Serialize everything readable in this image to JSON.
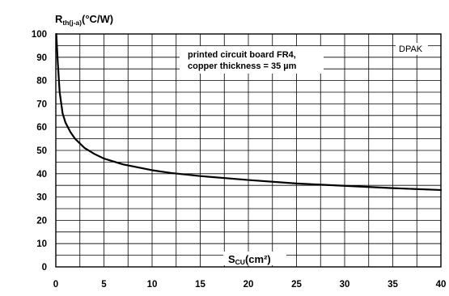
{
  "chart_data": {
    "type": "line",
    "ylabel_main": "R",
    "ylabel_sub": "th(j-a)",
    "ylabel_unit": "(°C/W)",
    "xlabel_main": "S",
    "xlabel_sub": "CU",
    "xlabel_unit": "(cm²)",
    "annotation_line1": "printed circuit board FR4,",
    "annotation_line2": "copper thickness = 35 µm",
    "package_label": "DPAK",
    "xlim": [
      0,
      40
    ],
    "ylim": [
      0,
      100
    ],
    "x_ticks": [
      "0",
      "5",
      "10",
      "15",
      "20",
      "25",
      "30",
      "35",
      "40"
    ],
    "y_ticks": [
      "0",
      "10",
      "20",
      "30",
      "40",
      "50",
      "60",
      "70",
      "80",
      "90",
      "100"
    ],
    "grid": true,
    "series": [
      {
        "x": [
          0.05,
          0.2,
          0.4,
          0.7,
          1,
          1.5,
          2,
          3,
          4,
          5,
          7,
          10,
          12,
          15,
          20,
          25,
          30,
          35,
          40
        ],
        "y": [
          100,
          88,
          75,
          66,
          62,
          58,
          55,
          51,
          48.5,
          46.5,
          44,
          41.5,
          40.3,
          39,
          37.3,
          35.8,
          34.8,
          33.8,
          33
        ]
      }
    ]
  }
}
